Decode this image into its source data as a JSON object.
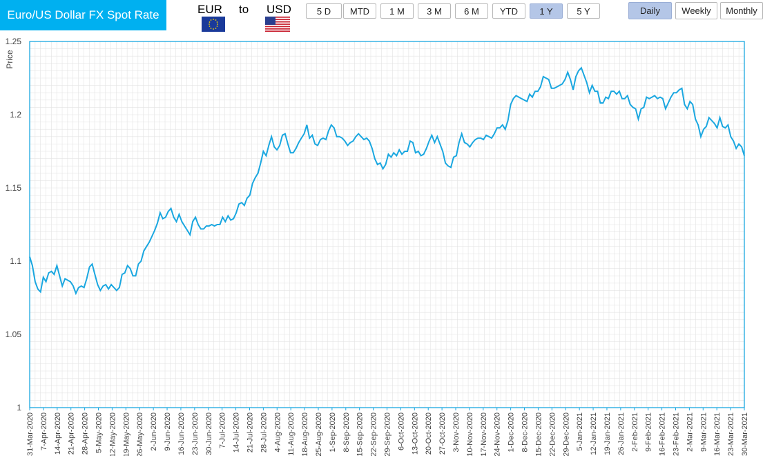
{
  "header": {
    "title": "Euro/US Dollar FX Spot Rate",
    "from_currency": "EUR",
    "to_word": "to",
    "to_currency": "USD"
  },
  "range_buttons": [
    {
      "label": "5 D",
      "active": false
    },
    {
      "label": "MTD",
      "active": false
    },
    {
      "label": "1 M",
      "active": false
    },
    {
      "label": "3 M",
      "active": false
    },
    {
      "label": "6 M",
      "active": false
    },
    {
      "label": "YTD",
      "active": false
    },
    {
      "label": "1 Y",
      "active": true
    },
    {
      "label": "5 Y",
      "active": false
    }
  ],
  "frequency_buttons": [
    {
      "label": "Daily",
      "active": true
    },
    {
      "label": "Weekly",
      "active": false
    },
    {
      "label": "Monthly",
      "active": false
    }
  ],
  "colors": {
    "accent": "#00b0f0",
    "line": "#1aa7e0",
    "grid": "#e3e3e3",
    "active_button": "#b4c6e7"
  },
  "chart_data": {
    "type": "line",
    "title": "",
    "xlabel": "",
    "ylabel": "Price",
    "ylim": [
      1,
      1.25
    ],
    "yticks": [
      "1.25",
      "1.2",
      "1.15",
      "1.1",
      "1.05",
      "1"
    ],
    "xticks": [
      "31-Mar-2020",
      "7-Apr-2020",
      "14-Apr-2020",
      "21-Apr-2020",
      "28-Apr-2020",
      "5-May-2020",
      "12-May-2020",
      "19-May-2020",
      "26-May-2020",
      "2-Jun-2020",
      "9-Jun-2020",
      "16-Jun-2020",
      "23-Jun-2020",
      "30-Jun-2020",
      "7-Jul-2020",
      "14-Jul-2020",
      "21-Jul-2020",
      "28-Jul-2020",
      "4-Aug-2020",
      "11-Aug-2020",
      "18-Aug-2020",
      "25-Aug-2020",
      "1-Sep-2020",
      "8-Sep-2020",
      "15-Sep-2020",
      "22-Sep-2020",
      "29-Sep-2020",
      "6-Oct-2020",
      "13-Oct-2020",
      "20-Oct-2020",
      "27-Oct-2020",
      "3-Nov-2020",
      "10-Nov-2020",
      "17-Nov-2020",
      "24-Nov-2020",
      "1-Dec-2020",
      "8-Dec-2020",
      "15-Dec-2020",
      "22-Dec-2020",
      "29-Dec-2020",
      "5-Jan-2021",
      "12-Jan-2021",
      "19-Jan-2021",
      "26-Jan-2021",
      "2-Feb-2021",
      "9-Feb-2021",
      "16-Feb-2021",
      "23-Feb-2021",
      "2-Mar-2021",
      "9-Mar-2021",
      "16-Mar-2021",
      "23-Mar-2021",
      "30-Mar-2021"
    ],
    "grid": true,
    "legend": "none",
    "series": [
      {
        "values": [
          1.103,
          1.097,
          1.086,
          1.081,
          1.079,
          1.089,
          1.086,
          1.092,
          1.093,
          1.091,
          1.097,
          1.09,
          1.083,
          1.088,
          1.087,
          1.086,
          1.083,
          1.078,
          1.082,
          1.083,
          1.082,
          1.088,
          1.096,
          1.098,
          1.091,
          1.084,
          1.08,
          1.083,
          1.084,
          1.081,
          1.084,
          1.082,
          1.08,
          1.082,
          1.091,
          1.092,
          1.097,
          1.095,
          1.09,
          1.09,
          1.098,
          1.1,
          1.107,
          1.11,
          1.113,
          1.117,
          1.121,
          1.126,
          1.133,
          1.129,
          1.13,
          1.134,
          1.136,
          1.13,
          1.127,
          1.132,
          1.127,
          1.124,
          1.121,
          1.118,
          1.127,
          1.13,
          1.125,
          1.122,
          1.122,
          1.124,
          1.124,
          1.125,
          1.124,
          1.125,
          1.125,
          1.13,
          1.127,
          1.131,
          1.128,
          1.129,
          1.133,
          1.139,
          1.14,
          1.138,
          1.143,
          1.145,
          1.153,
          1.157,
          1.16,
          1.167,
          1.175,
          1.172,
          1.179,
          1.185,
          1.178,
          1.176,
          1.179,
          1.186,
          1.187,
          1.18,
          1.174,
          1.174,
          1.177,
          1.181,
          1.184,
          1.187,
          1.193,
          1.184,
          1.186,
          1.18,
          1.179,
          1.183,
          1.184,
          1.183,
          1.189,
          1.193,
          1.191,
          1.185,
          1.185,
          1.184,
          1.182,
          1.179,
          1.181,
          1.182,
          1.185,
          1.187,
          1.185,
          1.183,
          1.184,
          1.182,
          1.177,
          1.17,
          1.166,
          1.167,
          1.163,
          1.166,
          1.173,
          1.171,
          1.174,
          1.172,
          1.176,
          1.173,
          1.175,
          1.175,
          1.182,
          1.181,
          1.174,
          1.175,
          1.172,
          1.173,
          1.177,
          1.182,
          1.186,
          1.181,
          1.185,
          1.18,
          1.175,
          1.167,
          1.165,
          1.164,
          1.171,
          1.172,
          1.181,
          1.187,
          1.181,
          1.18,
          1.178,
          1.181,
          1.183,
          1.184,
          1.184,
          1.183,
          1.186,
          1.185,
          1.184,
          1.187,
          1.191,
          1.191,
          1.193,
          1.19,
          1.196,
          1.207,
          1.211,
          1.213,
          1.212,
          1.211,
          1.21,
          1.209,
          1.214,
          1.212,
          1.216,
          1.216,
          1.219,
          1.226,
          1.225,
          1.224,
          1.218,
          1.218,
          1.219,
          1.22,
          1.221,
          1.224,
          1.229,
          1.224,
          1.217,
          1.226,
          1.23,
          1.232,
          1.227,
          1.222,
          1.215,
          1.22,
          1.216,
          1.216,
          1.208,
          1.208,
          1.212,
          1.211,
          1.216,
          1.216,
          1.214,
          1.216,
          1.211,
          1.211,
          1.213,
          1.207,
          1.205,
          1.204,
          1.197,
          1.204,
          1.205,
          1.212,
          1.211,
          1.212,
          1.213,
          1.211,
          1.212,
          1.211,
          1.204,
          1.208,
          1.212,
          1.215,
          1.215,
          1.217,
          1.218,
          1.207,
          1.204,
          1.209,
          1.207,
          1.197,
          1.193,
          1.185,
          1.19,
          1.192,
          1.198,
          1.196,
          1.194,
          1.191,
          1.198,
          1.192,
          1.191,
          1.193,
          1.185,
          1.182,
          1.177,
          1.18,
          1.178,
          1.172
        ]
      }
    ]
  }
}
